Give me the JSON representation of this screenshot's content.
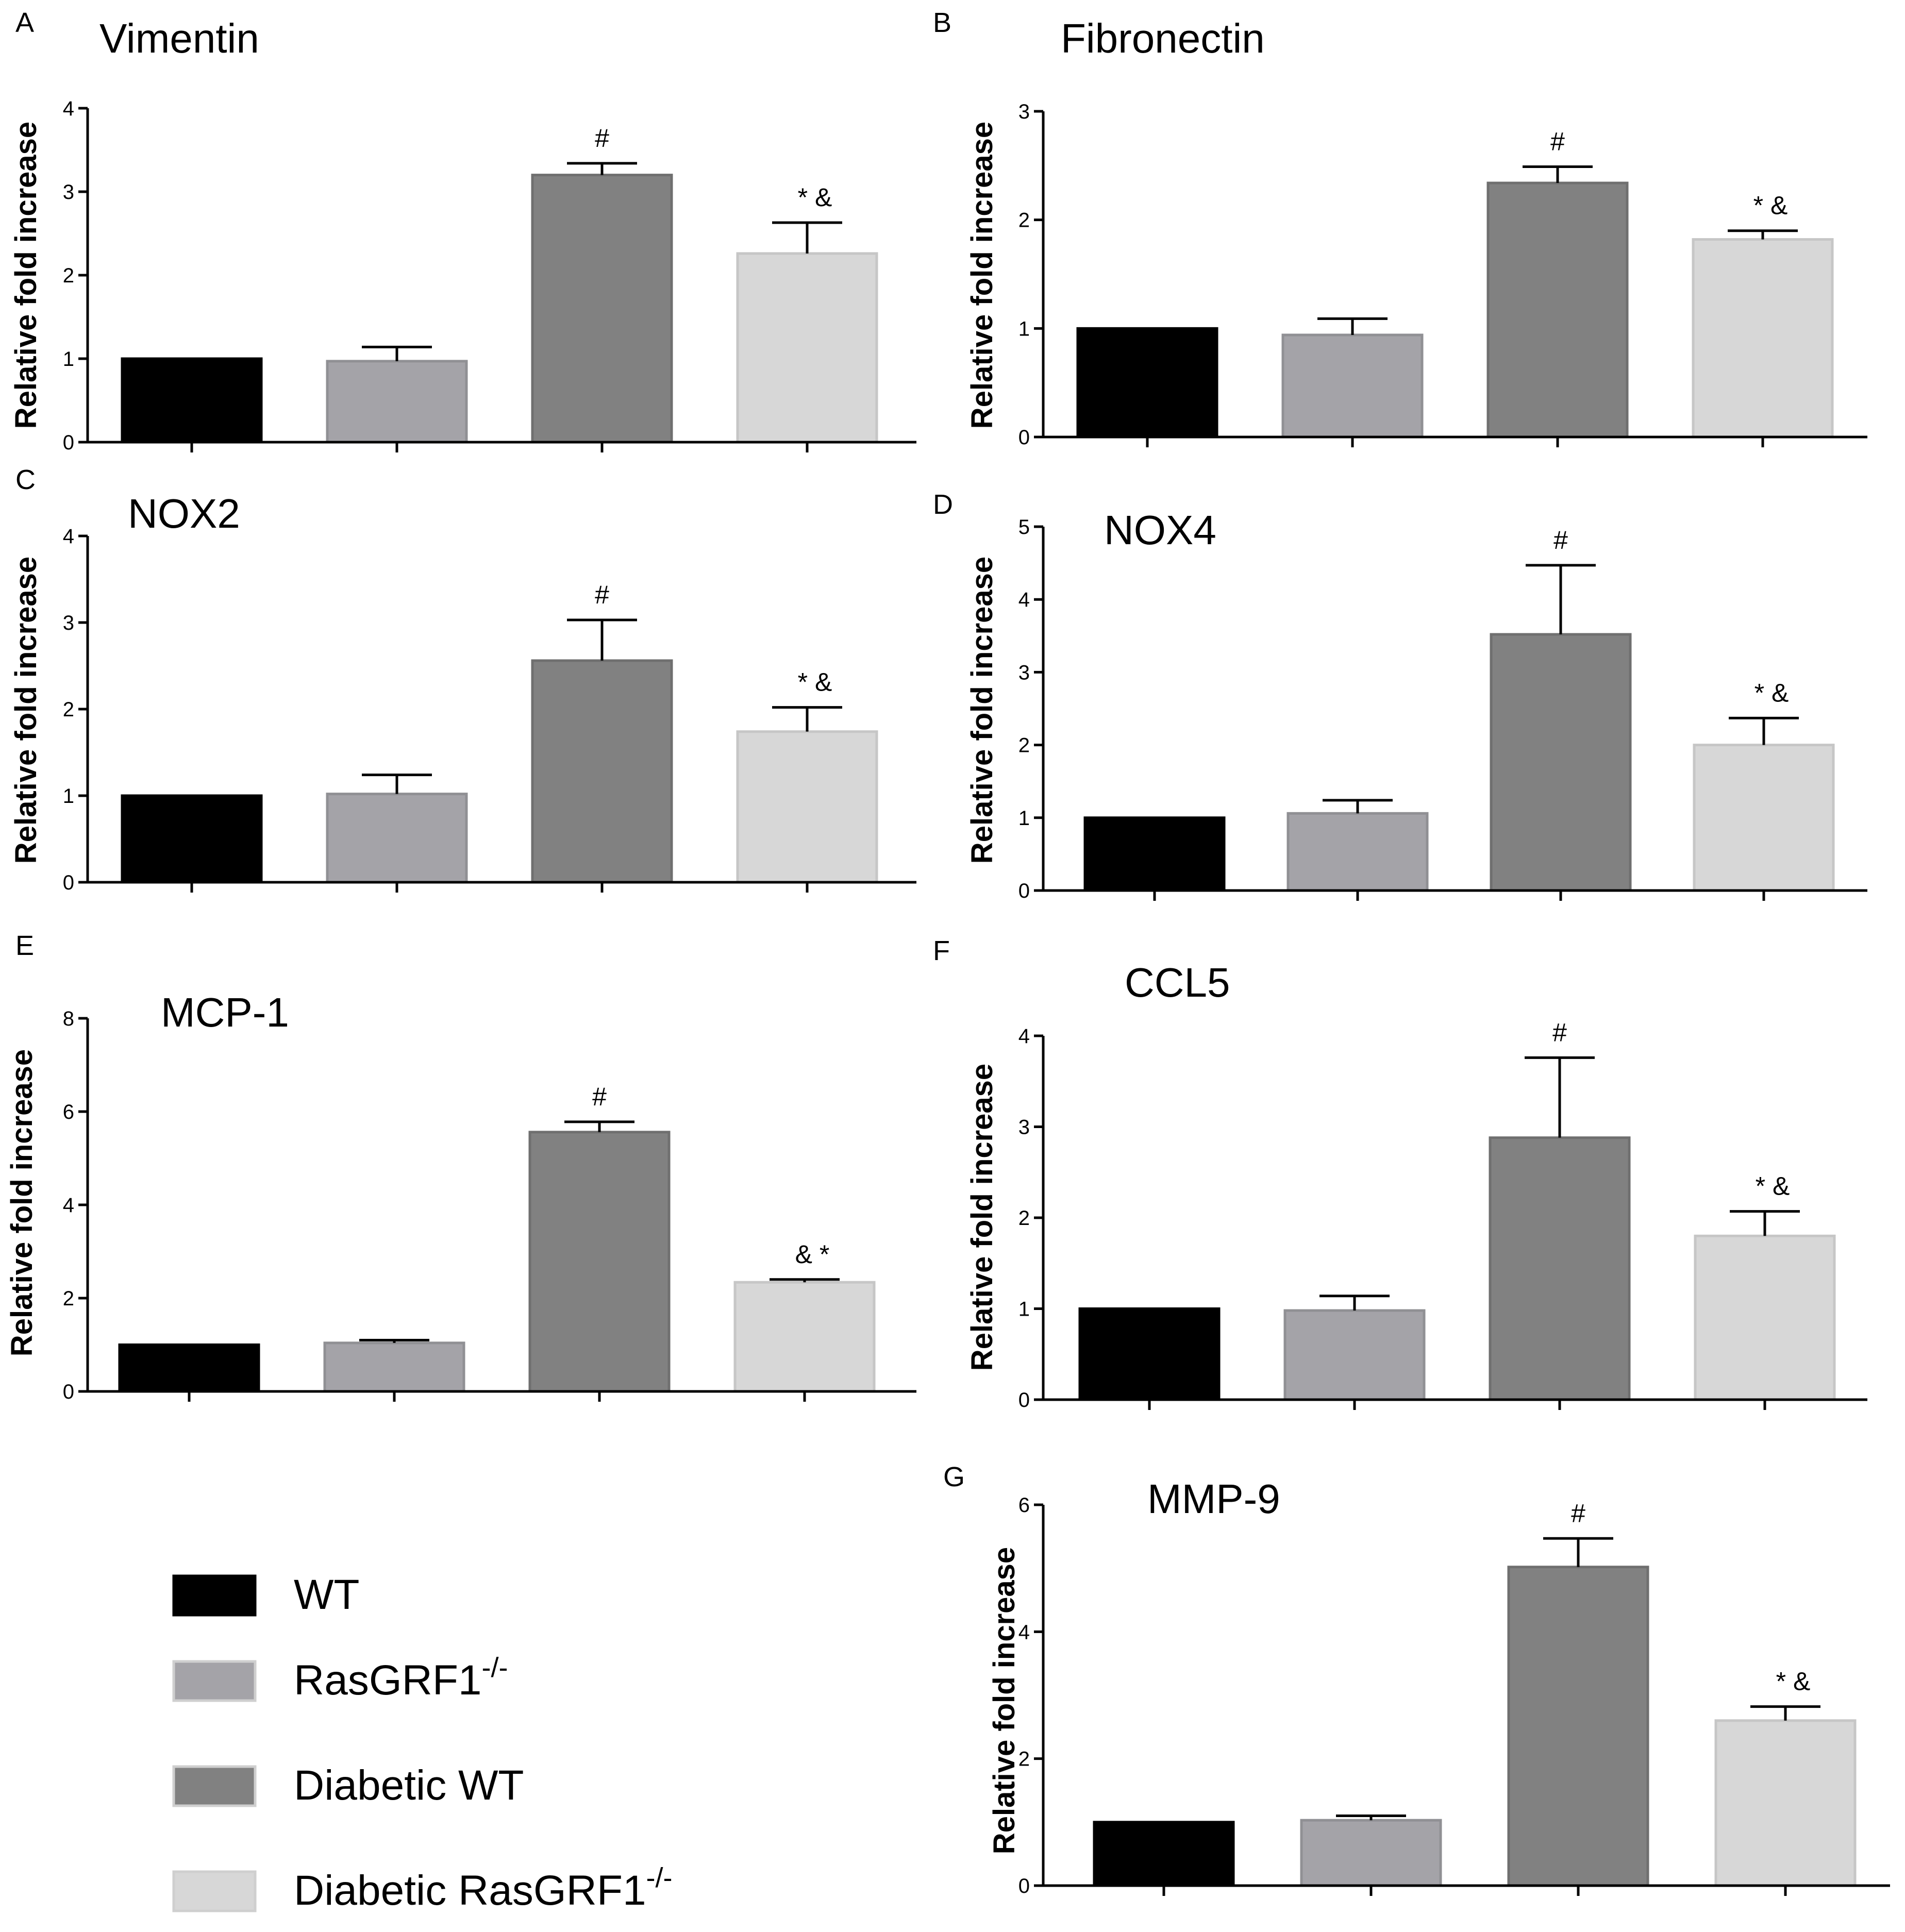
{
  "colors": {
    "wt": "#000000",
    "rasgrf1_ko": "#a4a3a8",
    "diabetic_wt": "#818181",
    "diabetic_rasgrf1_ko": "#d7d7d7"
  },
  "legend": {
    "items": [
      {
        "label": "WT",
        "sup": "",
        "color_key": "wt"
      },
      {
        "label": "RasGRF1",
        "sup": "-/-",
        "color_key": "rasgrf1_ko"
      },
      {
        "label": "Diabetic WT",
        "sup": "",
        "color_key": "diabetic_wt"
      },
      {
        "label": "Diabetic RasGRF1",
        "sup": "-/-",
        "color_key": "diabetic_rasgrf1_ko"
      }
    ]
  },
  "chart_data": [
    {
      "panel": "A",
      "title": "Vimentin",
      "type": "bar",
      "ylabel": "Relative fold increase",
      "ylim": [
        0,
        4
      ],
      "yticks": [
        0,
        1,
        2,
        3,
        4
      ],
      "values": [
        1.0,
        0.97,
        3.2,
        2.26
      ],
      "errors": [
        0,
        0.17,
        0.14,
        0.37
      ],
      "annotations": [
        "",
        "",
        "#",
        "* &"
      ]
    },
    {
      "panel": "B",
      "title": "Fibronectin",
      "type": "bar",
      "ylabel": "Relative fold increase",
      "ylim": [
        0,
        3
      ],
      "yticks": [
        0,
        1,
        2,
        3
      ],
      "values": [
        1.0,
        0.94,
        2.34,
        1.82
      ],
      "errors": [
        0,
        0.15,
        0.15,
        0.08
      ],
      "annotations": [
        "",
        "",
        "#",
        "* &"
      ]
    },
    {
      "panel": "C",
      "title": "NOX2",
      "type": "bar",
      "ylabel": "Relative fold increase",
      "ylim": [
        0,
        4
      ],
      "yticks": [
        0,
        1,
        2,
        3,
        4
      ],
      "values": [
        1.0,
        1.02,
        2.56,
        1.74
      ],
      "errors": [
        0,
        0.22,
        0.47,
        0.28
      ],
      "annotations": [
        "",
        "",
        "#",
        "* &"
      ]
    },
    {
      "panel": "D",
      "title": "NOX4",
      "type": "bar",
      "ylabel": "Relative fold increase",
      "ylim": [
        0,
        5
      ],
      "yticks": [
        0,
        1,
        2,
        3,
        4,
        5
      ],
      "values": [
        1.0,
        1.06,
        3.52,
        2.0
      ],
      "errors": [
        0,
        0.18,
        0.95,
        0.37
      ],
      "annotations": [
        "",
        "",
        "#",
        "* &"
      ]
    },
    {
      "panel": "E",
      "title": "MCP-1",
      "type": "bar",
      "ylabel": "Relative fold increase",
      "ylim": [
        0,
        8
      ],
      "yticks": [
        0,
        2,
        4,
        6,
        8
      ],
      "values": [
        1.0,
        1.04,
        5.56,
        2.34
      ],
      "errors": [
        0,
        0.06,
        0.22,
        0.06
      ],
      "annotations": [
        "",
        "",
        "#",
        "& *"
      ]
    },
    {
      "panel": "F",
      "title": "CCL5",
      "type": "bar",
      "ylabel": "Relative fold increase",
      "ylim": [
        0,
        4
      ],
      "yticks": [
        0,
        1,
        2,
        3,
        4
      ],
      "values": [
        1.0,
        0.98,
        2.88,
        1.8
      ],
      "errors": [
        0,
        0.16,
        0.88,
        0.27
      ],
      "annotations": [
        "",
        "",
        "#",
        "* &"
      ]
    },
    {
      "panel": "G",
      "title": "MMP-9",
      "type": "bar",
      "ylabel": "Relative fold increase",
      "ylim": [
        0,
        6
      ],
      "yticks": [
        0,
        2,
        4,
        6
      ],
      "values": [
        1.0,
        1.03,
        5.02,
        2.6
      ],
      "errors": [
        0,
        0.07,
        0.45,
        0.22
      ],
      "annotations": [
        "",
        "",
        "#",
        "* &"
      ]
    }
  ]
}
